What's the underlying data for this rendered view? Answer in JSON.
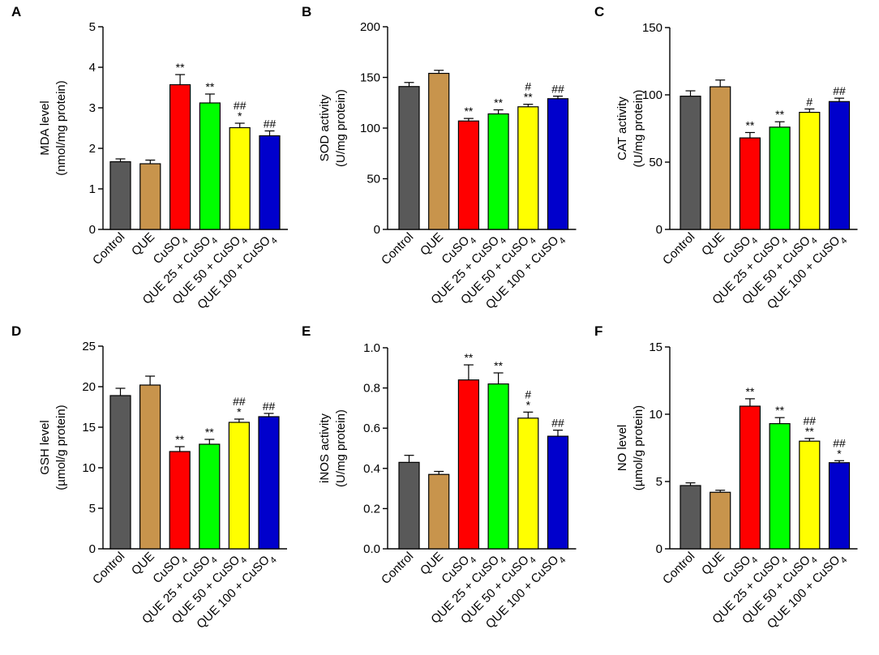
{
  "figure": {
    "categories": [
      "Control",
      "QUE",
      "CuSO4",
      "QUE 25 + CuSO4",
      "QUE 50 + CuSO4",
      "QUE 100 + CuSO4"
    ],
    "category_labels": [
      {
        "text": "Control",
        "sub": ""
      },
      {
        "text": "QUE",
        "sub": ""
      },
      {
        "text": "CuSO",
        "sub": "4"
      },
      {
        "text": "QUE 25 + CuSO",
        "sub": "4"
      },
      {
        "text": "QUE 50 + CuSO",
        "sub": "4"
      },
      {
        "text": "QUE 100 + CuSO",
        "sub": "4"
      }
    ],
    "colors": [
      "#595959",
      "#c8944c",
      "#ff0000",
      "#00ff00",
      "#ffff00",
      "#0000cc"
    ]
  },
  "chart_data": [
    {
      "panel": "A",
      "type": "bar",
      "ylabel_lines": [
        "MDA level",
        "(nmol/mg protein)"
      ],
      "ylim": [
        0,
        5
      ],
      "yticks": [
        0,
        1,
        2,
        3,
        4,
        5
      ],
      "ytick_labels": [
        "0",
        "1",
        "2",
        "3",
        "4",
        "5"
      ],
      "values": [
        1.67,
        1.62,
        3.57,
        3.12,
        2.51,
        2.31
      ],
      "errors": [
        0.07,
        0.09,
        0.25,
        0.22,
        0.11,
        0.12
      ],
      "annotations": [
        [],
        [],
        [
          "**"
        ],
        [
          "**"
        ],
        [
          "##",
          "*"
        ],
        [
          "##"
        ]
      ]
    },
    {
      "panel": "B",
      "type": "bar",
      "ylabel_lines": [
        "SOD activity",
        "(U/mg protein)"
      ],
      "ylim": [
        0,
        200
      ],
      "yticks": [
        0,
        50,
        100,
        150,
        200
      ],
      "ytick_labels": [
        "0",
        "50",
        "100",
        "150",
        "200"
      ],
      "values": [
        141,
        154,
        107,
        114,
        121,
        129
      ],
      "errors": [
        4,
        3,
        2.5,
        4,
        2.5,
        2.5
      ],
      "annotations": [
        [],
        [],
        [
          "**"
        ],
        [
          "**"
        ],
        [
          "#",
          "**"
        ],
        [
          "##"
        ]
      ]
    },
    {
      "panel": "C",
      "type": "bar",
      "ylabel_lines": [
        "CAT activity",
        "(U/mg protein)"
      ],
      "ylim": [
        0,
        150
      ],
      "yticks": [
        0,
        50,
        100,
        150
      ],
      "ytick_labels": [
        "0",
        "50",
        "100",
        "150"
      ],
      "values": [
        99,
        106,
        68,
        76,
        87,
        95
      ],
      "errors": [
        4,
        5,
        4,
        4,
        2.5,
        2.5
      ],
      "annotations": [
        [],
        [],
        [
          "**"
        ],
        [
          "**"
        ],
        [
          "#"
        ],
        [
          "##"
        ]
      ]
    },
    {
      "panel": "D",
      "type": "bar",
      "ylabel_lines": [
        "GSH level",
        "(µmol/g protein)"
      ],
      "ylim": [
        0,
        25
      ],
      "yticks": [
        0,
        5,
        10,
        15,
        20,
        25
      ],
      "ytick_labels": [
        "0",
        "5",
        "10",
        "15",
        "20",
        "25"
      ],
      "values": [
        18.9,
        20.2,
        12.0,
        12.9,
        15.6,
        16.3
      ],
      "errors": [
        0.9,
        1.1,
        0.6,
        0.6,
        0.4,
        0.4
      ],
      "annotations": [
        [],
        [],
        [
          "**"
        ],
        [
          "**"
        ],
        [
          "##",
          "*"
        ],
        [
          "##"
        ]
      ]
    },
    {
      "panel": "E",
      "type": "bar",
      "ylabel_lines": [
        "iNOS activity",
        "(U/mg protein)"
      ],
      "ylim": [
        0,
        1.0
      ],
      "yticks": [
        0,
        0.2,
        0.4,
        0.6,
        0.8,
        1.0
      ],
      "ytick_labels": [
        "0.0",
        "0.2",
        "0.4",
        "0.6",
        "0.8",
        "1.0"
      ],
      "values": [
        0.43,
        0.37,
        0.84,
        0.82,
        0.65,
        0.56
      ],
      "errors": [
        0.035,
        0.015,
        0.075,
        0.055,
        0.03,
        0.03
      ],
      "annotations": [
        [],
        [],
        [
          "**"
        ],
        [
          "**"
        ],
        [
          "#",
          "*"
        ],
        [
          "##"
        ]
      ]
    },
    {
      "panel": "F",
      "type": "bar",
      "ylabel_lines": [
        "NO level",
        "(µmol/g protein)"
      ],
      "ylim": [
        0,
        15
      ],
      "yticks": [
        0,
        5,
        10,
        15
      ],
      "ytick_labels": [
        "0",
        "5",
        "10",
        "15"
      ],
      "values": [
        4.7,
        4.2,
        10.6,
        9.3,
        8.0,
        6.4
      ],
      "errors": [
        0.2,
        0.15,
        0.55,
        0.45,
        0.2,
        0.15
      ],
      "annotations": [
        [],
        [],
        [
          "**"
        ],
        [
          "**"
        ],
        [
          "##",
          "**"
        ],
        [
          "##",
          "*"
        ]
      ]
    }
  ]
}
